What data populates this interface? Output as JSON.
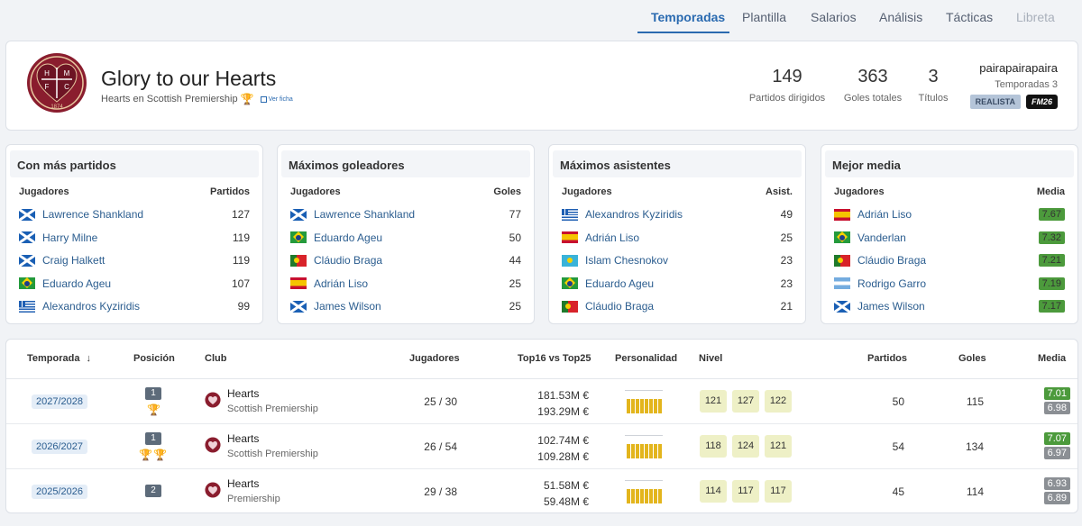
{
  "tabs": [
    {
      "label": "Temporadas",
      "state": "active"
    },
    {
      "label": "Plantilla",
      "state": "normal"
    },
    {
      "label": "Salarios",
      "state": "normal"
    },
    {
      "label": "Análisis",
      "state": "normal"
    },
    {
      "label": "Tácticas",
      "state": "normal"
    },
    {
      "label": "Libreta",
      "state": "disabled"
    }
  ],
  "header": {
    "crest_letters": [
      "H",
      "M",
      "F",
      "C"
    ],
    "crest_year": "1874",
    "title": "Glory to our Hearts",
    "subtitle": "Hearts en Scottish Premiership",
    "ver_ficha": "Ver ficha",
    "stats": [
      {
        "value": "149",
        "label": "Partidos dirigidos"
      },
      {
        "value": "363",
        "label": "Goles totales"
      },
      {
        "value": "3",
        "label": "Títulos"
      }
    ],
    "manager": "pairapairapaira",
    "seasons_label": "Temporadas 3",
    "badge_style": "REALISTA",
    "badge_game": "FM26"
  },
  "leaders": [
    {
      "title": "Con más partidos",
      "col1": "Jugadores",
      "col2": "Partidos",
      "rows": [
        {
          "flag": "sco",
          "name": "Lawrence Shankland",
          "value": "127"
        },
        {
          "flag": "sco",
          "name": "Harry Milne",
          "value": "119"
        },
        {
          "flag": "sco",
          "name": "Craig Halkett",
          "value": "119"
        },
        {
          "flag": "bra",
          "name": "Eduardo Ageu",
          "value": "107"
        },
        {
          "flag": "gre",
          "name": "Alexandros Kyziridis",
          "value": "99"
        }
      ]
    },
    {
      "title": "Máximos goleadores",
      "col1": "Jugadores",
      "col2": "Goles",
      "rows": [
        {
          "flag": "sco",
          "name": "Lawrence Shankland",
          "value": "77"
        },
        {
          "flag": "bra",
          "name": "Eduardo Ageu",
          "value": "50"
        },
        {
          "flag": "por",
          "name": "Cláudio Braga",
          "value": "44"
        },
        {
          "flag": "esp",
          "name": "Adrián Liso",
          "value": "25"
        },
        {
          "flag": "sco",
          "name": "James Wilson",
          "value": "25"
        }
      ]
    },
    {
      "title": "Máximos asistentes",
      "col1": "Jugadores",
      "col2": "Asist.",
      "rows": [
        {
          "flag": "gre",
          "name": "Alexandros Kyziridis",
          "value": "49"
        },
        {
          "flag": "esp",
          "name": "Adrián Liso",
          "value": "25"
        },
        {
          "flag": "kaz",
          "name": "Islam Chesnokov",
          "value": "23"
        },
        {
          "flag": "bra",
          "name": "Eduardo Ageu",
          "value": "23"
        },
        {
          "flag": "por",
          "name": "Cláudio Braga",
          "value": "21"
        }
      ]
    },
    {
      "title": "Mejor media",
      "col1": "Jugadores",
      "col2": "Media",
      "rows": [
        {
          "flag": "esp",
          "name": "Adrián Liso",
          "value": "7.67"
        },
        {
          "flag": "bra",
          "name": "Vanderlan",
          "value": "7.32"
        },
        {
          "flag": "por",
          "name": "Cláudio Braga",
          "value": "7.21"
        },
        {
          "flag": "arg",
          "name": "Rodrigo Garro",
          "value": "7.19"
        },
        {
          "flag": "sco",
          "name": "James Wilson",
          "value": "7.17"
        }
      ]
    }
  ],
  "table": {
    "headers": {
      "temporada": "Temporada",
      "posicion": "Posición",
      "club": "Club",
      "jugadores": "Jugadores",
      "top16": "Top16 vs Top25",
      "personalidad": "Personalidad",
      "nivel": "Nivel",
      "partidos": "Partidos",
      "goles": "Goles",
      "media": "Media"
    },
    "rows": [
      {
        "season": "2027/2028",
        "position": "1",
        "trophies": 1,
        "club": "Hearts",
        "league": "Scottish Premiership",
        "players": "25 / 30",
        "top16": "181.53M €",
        "top25": "193.29M €",
        "personality": [
          0.62,
          0.62,
          0.62,
          0.62,
          0.62,
          0.62,
          0.62,
          0.62
        ],
        "nivel": [
          "121",
          "127",
          "122"
        ],
        "partidos": "50",
        "goles": "115",
        "media_top": "7.01",
        "media_bottom": "6.98",
        "media_top_color": "green"
      },
      {
        "season": "2026/2027",
        "position": "1",
        "trophies": 2,
        "club": "Hearts",
        "league": "Scottish Premiership",
        "players": "26 / 54",
        "top16": "102.74M €",
        "top25": "109.28M €",
        "personality": [
          0.62,
          0.62,
          0.62,
          0.62,
          0.62,
          0.62,
          0.62,
          0.62
        ],
        "nivel": [
          "118",
          "124",
          "121"
        ],
        "partidos": "54",
        "goles": "134",
        "media_top": "7.07",
        "media_bottom": "6.97",
        "media_top_color": "green"
      },
      {
        "season": "2025/2026",
        "position": "2",
        "trophies": 0,
        "club": "Hearts",
        "league": "Premiership",
        "players": "29 / 38",
        "top16": "51.58M €",
        "top25": "59.48M €",
        "personality": [
          0.62,
          0.62,
          0.62,
          0.62,
          0.62,
          0.62,
          0.62,
          0.62
        ],
        "nivel": [
          "114",
          "117",
          "117"
        ],
        "partidos": "45",
        "goles": "114",
        "media_top": "6.93",
        "media_bottom": "6.89",
        "media_top_color": "grey"
      }
    ]
  },
  "colors": {
    "accent": "#2a6ab0",
    "crest_maroon": "#8a1d2e",
    "media_green": "#4c9a3c",
    "trophy_gold": "#e2a100"
  }
}
